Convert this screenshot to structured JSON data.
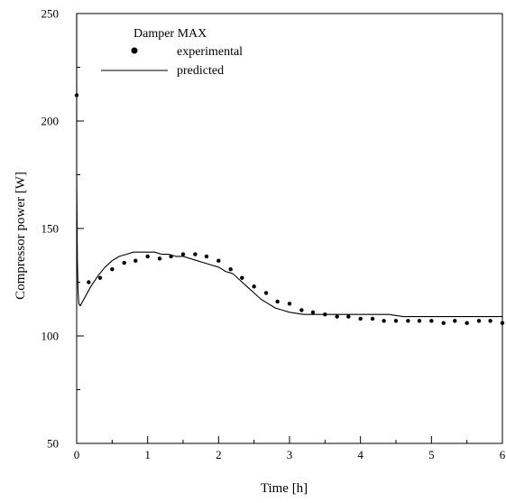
{
  "chart_data": {
    "type": "line",
    "title": "",
    "xlabel": "Time [h]",
    "ylabel": "Compressor power [W]",
    "xlim": [
      0,
      6
    ],
    "ylim": [
      50,
      250
    ],
    "x_ticks": [
      0,
      1,
      2,
      3,
      4,
      5,
      6
    ],
    "y_ticks": [
      50,
      100,
      150,
      200,
      250
    ],
    "x_tick_labels": [
      "0",
      "1",
      "2",
      "3",
      "4",
      "5",
      "6"
    ],
    "y_tick_labels": [
      "50",
      "100",
      "150",
      "200",
      "250"
    ],
    "grid": false,
    "legend": {
      "title": "Damper MAX",
      "placement": "top-left",
      "entries": [
        {
          "label": "experimental",
          "marker": "dot"
        },
        {
          "label": "predicted",
          "marker": "line"
        }
      ]
    },
    "series": [
      {
        "name": "experimental",
        "style": "markers",
        "color": "#000000",
        "x": [
          0.0,
          0.17,
          0.33,
          0.5,
          0.67,
          0.83,
          1.0,
          1.17,
          1.33,
          1.5,
          1.67,
          1.83,
          2.0,
          2.17,
          2.33,
          2.5,
          2.67,
          2.83,
          3.0,
          3.17,
          3.33,
          3.5,
          3.67,
          3.83,
          4.0,
          4.17,
          4.33,
          4.5,
          4.67,
          4.83,
          5.0,
          5.17,
          5.33,
          5.5,
          5.67,
          5.83,
          6.0
        ],
        "y": [
          212,
          125,
          127,
          131,
          134,
          135,
          137,
          136,
          137,
          138,
          138,
          137,
          135,
          131,
          127,
          123,
          120,
          116,
          115,
          112,
          111,
          110,
          109,
          109,
          108,
          108,
          107,
          107,
          107,
          107,
          107,
          106,
          107,
          106,
          107,
          107,
          106
        ]
      },
      {
        "name": "predicted",
        "style": "line",
        "color": "#000000",
        "x": [
          0.0,
          0.0,
          0.01,
          0.02,
          0.03,
          0.05,
          0.1,
          0.2,
          0.3,
          0.4,
          0.5,
          0.6,
          0.7,
          0.8,
          0.9,
          1.0,
          1.1,
          1.2,
          1.3,
          1.4,
          1.5,
          1.6,
          1.7,
          1.8,
          1.9,
          2.0,
          2.1,
          2.2,
          2.3,
          2.4,
          2.5,
          2.6,
          2.7,
          2.8,
          2.9,
          3.0,
          3.2,
          3.4,
          3.6,
          3.8,
          4.0,
          4.2,
          4.4,
          4.6,
          4.8,
          5.0,
          5.2,
          5.4,
          5.6,
          5.8,
          6.0
        ],
        "y": [
          250,
          175,
          135,
          120,
          115,
          114,
          117,
          123,
          128,
          132,
          135,
          137,
          138,
          139,
          139,
          139,
          139,
          138,
          138,
          137,
          137,
          136,
          135,
          134,
          133,
          132,
          130,
          129,
          126,
          123,
          120,
          117,
          115,
          113,
          112,
          111,
          110,
          110,
          110,
          110,
          110,
          110,
          110,
          109,
          109,
          109,
          109,
          109,
          109,
          109,
          109
        ]
      }
    ]
  }
}
